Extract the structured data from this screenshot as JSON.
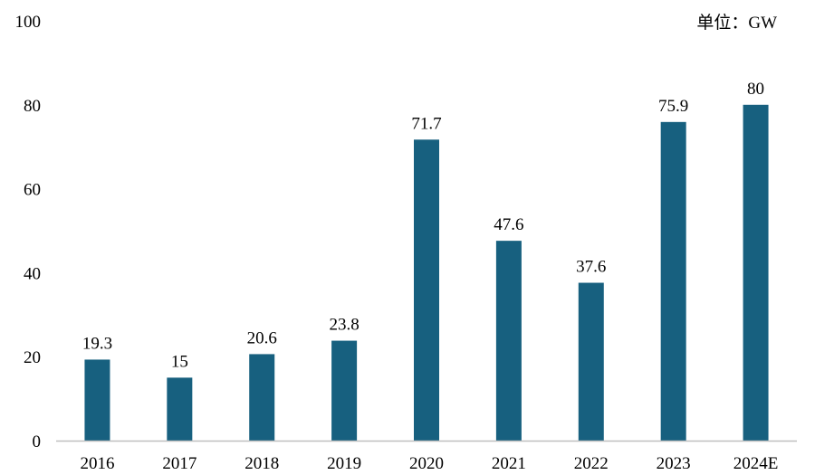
{
  "chart_data": {
    "type": "bar",
    "unit_label": "单位：GW",
    "categories": [
      "2016",
      "2017",
      "2018",
      "2019",
      "2020",
      "2021",
      "2022",
      "2023",
      "2024E"
    ],
    "values": [
      19.3,
      15,
      20.6,
      23.8,
      71.7,
      47.6,
      37.6,
      75.9,
      80
    ],
    "value_labels": [
      "19.3",
      "15",
      "20.6",
      "23.8",
      "71.7",
      "47.6",
      "37.6",
      "75.9",
      "80"
    ],
    "y_ticks": [
      "0",
      "20",
      "40",
      "60",
      "80",
      "100"
    ],
    "ylim": [
      0,
      100
    ],
    "grid": false,
    "bar_color": "#17607F",
    "axis_color": "#BFBFBF"
  }
}
